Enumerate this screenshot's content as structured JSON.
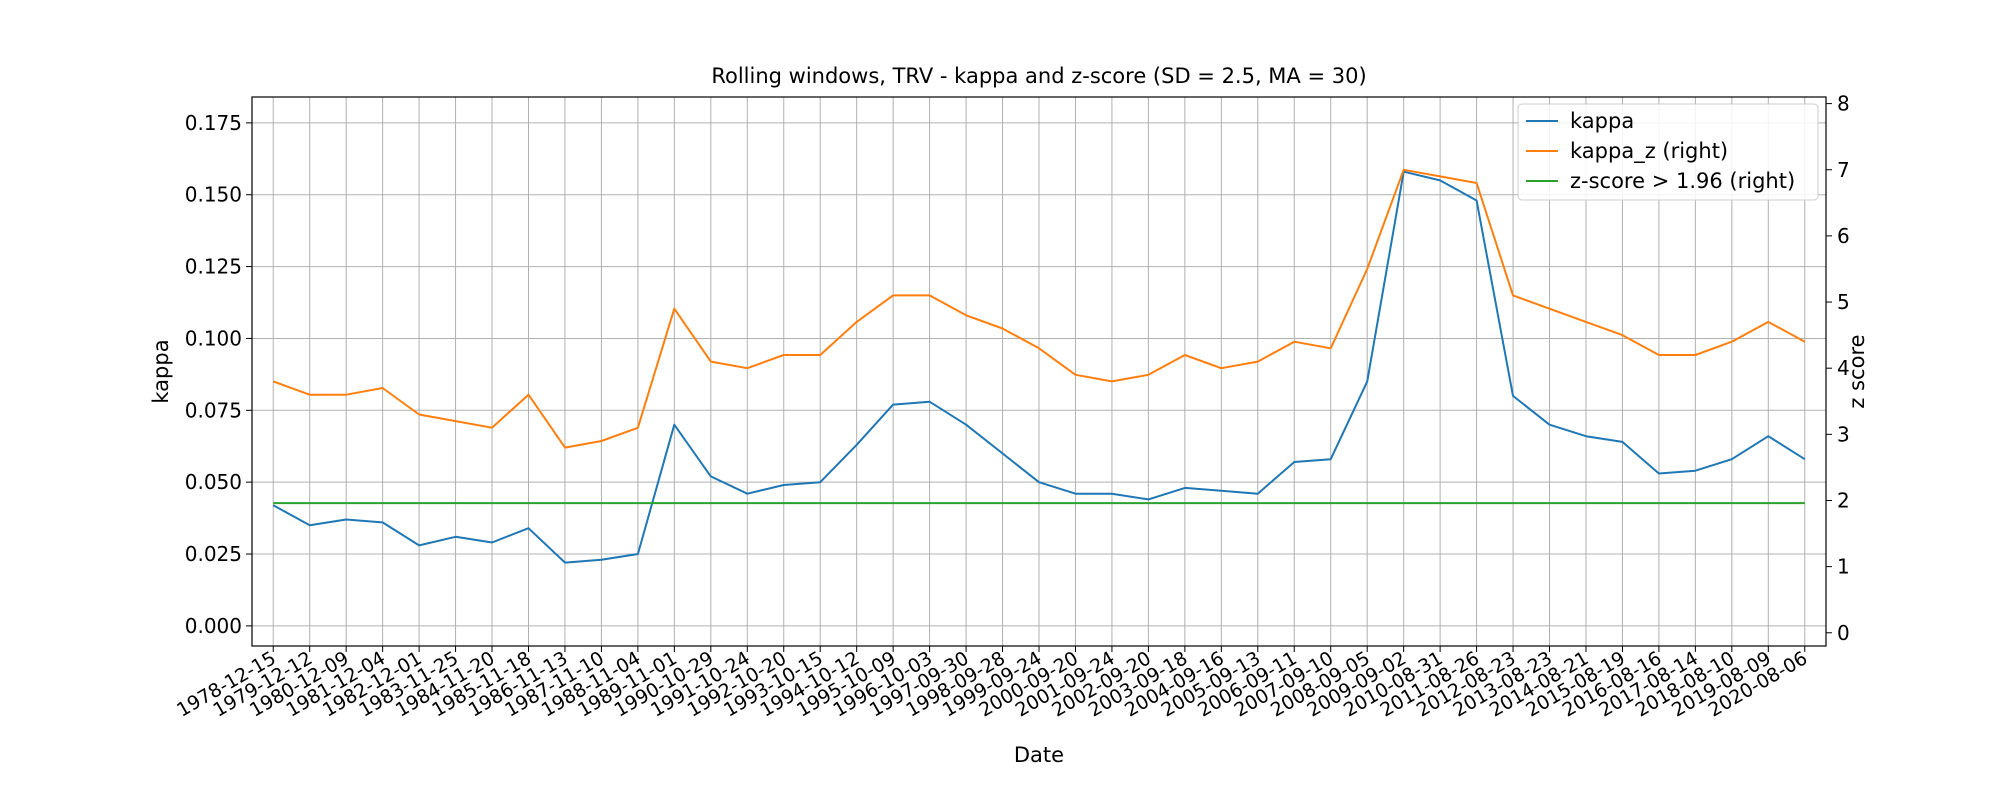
{
  "chart_data": {
    "type": "line",
    "title": "Rolling windows, TRV - kappa and z-score (SD = 2.5, MA = 30)",
    "xlabel": "Date",
    "ylabel": "kappa",
    "ylabel_right": "z score",
    "ylim": [
      -0.007,
      0.184
    ],
    "ylim_right": [
      -0.2,
      8.1
    ],
    "yticks": [
      "0.000",
      "0.025",
      "0.050",
      "0.075",
      "0.100",
      "0.125",
      "0.150",
      "0.175"
    ],
    "yticks_right": [
      "0",
      "1",
      "2",
      "3",
      "4",
      "5",
      "6",
      "7",
      "8"
    ],
    "x": [
      "1978-12-15",
      "1979-12-12",
      "1980-12-09",
      "1981-12-04",
      "1982-12-01",
      "1983-11-25",
      "1984-11-20",
      "1985-11-18",
      "1986-11-13",
      "1987-11-10",
      "1988-11-04",
      "1989-11-01",
      "1990-10-29",
      "1991-10-24",
      "1992-10-20",
      "1993-10-15",
      "1994-10-12",
      "1995-10-09",
      "1996-10-03",
      "1997-09-30",
      "1998-09-28",
      "1999-09-24",
      "2000-09-20",
      "2001-09-24",
      "2002-09-20",
      "2003-09-18",
      "2004-09-16",
      "2005-09-13",
      "2006-09-11",
      "2007-09-10",
      "2008-09-05",
      "2009-09-02",
      "2010-08-31",
      "2011-08-26",
      "2012-08-23",
      "2013-08-23",
      "2014-08-21",
      "2015-08-19",
      "2016-08-16",
      "2017-08-14",
      "2018-08-10",
      "2019-08-09",
      "2020-08-06"
    ],
    "grid": true,
    "legend_position": "top-right",
    "series": [
      {
        "name": "kappa",
        "axis": "left",
        "color": "#1f77b4",
        "values": [
          0.042,
          0.035,
          0.037,
          0.036,
          0.028,
          0.031,
          0.029,
          0.034,
          0.022,
          0.023,
          0.025,
          0.07,
          0.052,
          0.046,
          0.049,
          0.05,
          0.063,
          0.077,
          0.078,
          0.07,
          0.06,
          0.05,
          0.046,
          0.046,
          0.044,
          0.048,
          0.047,
          0.046,
          0.057,
          0.058,
          0.085,
          0.158,
          0.155,
          0.148,
          0.08,
          0.07,
          0.066,
          0.064,
          0.053,
          0.054,
          0.058,
          0.066,
          0.058
        ]
      },
      {
        "name": "kappa_z (right)",
        "axis": "right",
        "color": "#ff7f0e",
        "values": [
          3.8,
          3.6,
          3.6,
          3.7,
          3.3,
          3.2,
          3.1,
          3.6,
          2.8,
          2.9,
          3.1,
          4.9,
          4.1,
          4.0,
          4.2,
          4.2,
          4.7,
          5.1,
          5.1,
          4.8,
          4.6,
          4.3,
          3.9,
          3.8,
          3.9,
          4.2,
          4.0,
          4.1,
          4.4,
          4.3,
          5.5,
          7.0,
          6.9,
          6.8,
          5.1,
          4.9,
          4.7,
          4.5,
          4.2,
          4.2,
          4.4,
          4.7,
          4.4
        ]
      },
      {
        "name": "z-score > 1.96 (right)",
        "axis": "right",
        "color": "#2ca02c",
        "values": [
          1.96,
          1.96,
          1.96,
          1.96,
          1.96,
          1.96,
          1.96,
          1.96,
          1.96,
          1.96,
          1.96,
          1.96,
          1.96,
          1.96,
          1.96,
          1.96,
          1.96,
          1.96,
          1.96,
          1.96,
          1.96,
          1.96,
          1.96,
          1.96,
          1.96,
          1.96,
          1.96,
          1.96,
          1.96,
          1.96,
          1.96,
          1.96,
          1.96,
          1.96,
          1.96,
          1.96,
          1.96,
          1.96,
          1.96,
          1.96,
          1.96,
          1.96,
          1.96
        ]
      }
    ]
  }
}
